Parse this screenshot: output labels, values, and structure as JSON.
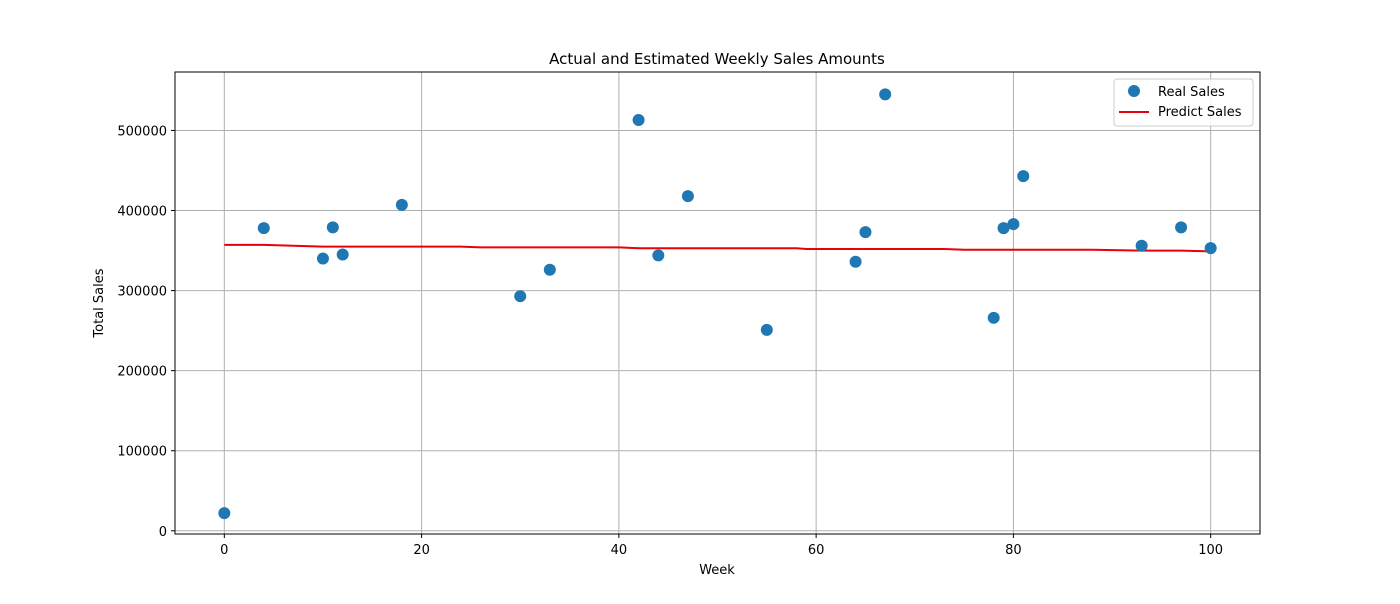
{
  "chart_data": {
    "type": "scatter",
    "title": "Actual and Estimated Weekly Sales Amounts",
    "xlabel": "Week",
    "ylabel": "Total Sales",
    "xlim": [
      -5,
      105
    ],
    "ylim": [
      -4000,
      573000
    ],
    "xticks": [
      0,
      20,
      40,
      60,
      80,
      100
    ],
    "yticks": [
      0,
      100000,
      200000,
      300000,
      400000,
      500000
    ],
    "grid": true,
    "legend_position": "top-right",
    "series": [
      {
        "name": "Real Sales",
        "kind": "points",
        "color": "#1f77b4",
        "points": [
          [
            0,
            22000
          ],
          [
            4,
            378000
          ],
          [
            10,
            340000
          ],
          [
            11,
            379000
          ],
          [
            12,
            345000
          ],
          [
            18,
            407000
          ],
          [
            30,
            293000
          ],
          [
            33,
            326000
          ],
          [
            42,
            513000
          ],
          [
            44,
            344000
          ],
          [
            47,
            418000
          ],
          [
            55,
            251000
          ],
          [
            64,
            336000
          ],
          [
            65,
            373000
          ],
          [
            67,
            545000
          ],
          [
            78,
            266000
          ],
          [
            79,
            378000
          ],
          [
            80,
            383000
          ],
          [
            81,
            443000
          ],
          [
            93,
            356000
          ],
          [
            97,
            379000
          ],
          [
            100,
            353000
          ]
        ]
      },
      {
        "name": "Predict Sales",
        "kind": "line",
        "color": "#e8000b",
        "points": [
          [
            0,
            357000
          ],
          [
            4,
            357000
          ],
          [
            10,
            355000
          ],
          [
            11,
            355000
          ],
          [
            12,
            355000
          ],
          [
            18,
            355000
          ],
          [
            24,
            355000
          ],
          [
            26,
            354000
          ],
          [
            30,
            354000
          ],
          [
            33,
            354000
          ],
          [
            40,
            354000
          ],
          [
            42,
            353000
          ],
          [
            44,
            353000
          ],
          [
            47,
            353000
          ],
          [
            55,
            353000
          ],
          [
            58,
            353000
          ],
          [
            59,
            352000
          ],
          [
            64,
            352000
          ],
          [
            65,
            352000
          ],
          [
            67,
            352000
          ],
          [
            73,
            352000
          ],
          [
            75,
            351000
          ],
          [
            78,
            351000
          ],
          [
            79,
            351000
          ],
          [
            80,
            351000
          ],
          [
            81,
            351000
          ],
          [
            88,
            351000
          ],
          [
            93,
            350000
          ],
          [
            97,
            350000
          ],
          [
            100,
            349000
          ]
        ]
      }
    ]
  }
}
